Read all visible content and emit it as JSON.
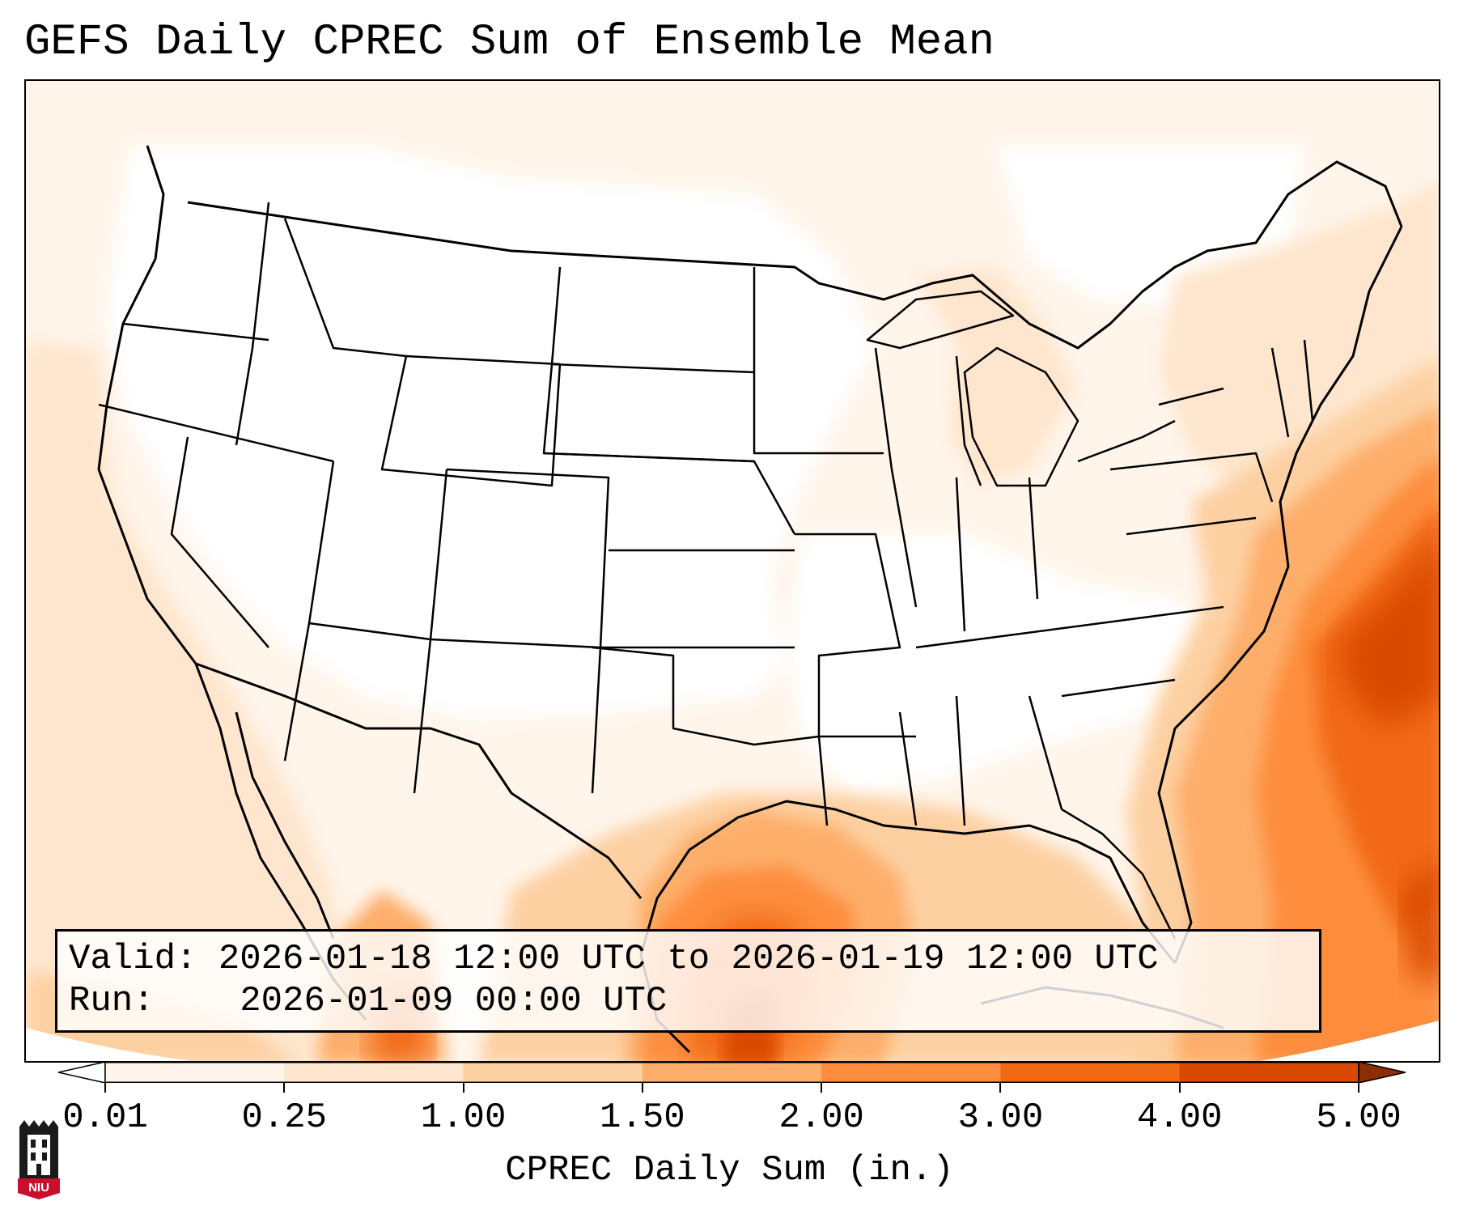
{
  "title": "GEFS Daily CPREC Sum of Ensemble Mean",
  "info": {
    "valid_label": "Valid:",
    "valid_value": "2026-01-18 12:00 UTC to 2026-01-19 12:00 UTC",
    "run_label": "Run:",
    "run_value": "2026-01-09 00:00 UTC"
  },
  "colorbar": {
    "label": "CPREC Daily Sum (in.)",
    "ticks": [
      "0.01",
      "0.25",
      "1.00",
      "1.50",
      "2.00",
      "3.00",
      "4.00",
      "5.00"
    ],
    "colors": [
      "#fff5eb",
      "#fee6ce",
      "#fdd0a2",
      "#fdae6b",
      "#fd8d3c",
      "#f16913",
      "#d94801",
      "#8c2d04"
    ],
    "extend": "both"
  },
  "logo": {
    "text": "NIU",
    "colors": {
      "shield": "#1a1a1a",
      "banner": "#c8102e"
    }
  },
  "map": {
    "projection": "lambert-conformal",
    "region": "CONUS",
    "boundaries": "state and country outlines",
    "precip_colors": {
      "none": "#ffffff",
      "trace": "#fff5eb",
      "light": "#fee6ce",
      "moderate": "#fdd0a2",
      "heavy": "#fdae6b",
      "very_heavy": "#fd8d3c",
      "extreme": "#f16913",
      "max": "#d94801"
    }
  }
}
